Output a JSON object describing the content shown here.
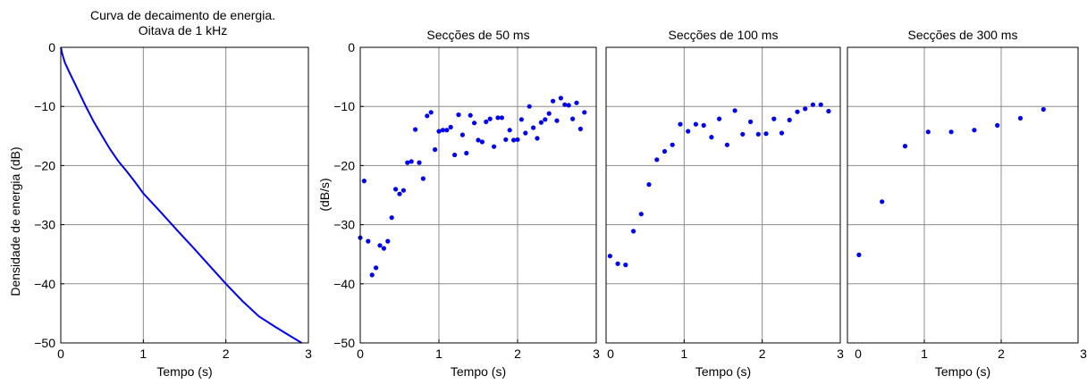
{
  "colors": {
    "series": "#0000ee",
    "grid": "#8c8c8c",
    "axis": "#000000"
  },
  "chart_data": [
    {
      "type": "line",
      "title": [
        "Curva de decaimento de energia.",
        "Oitava de 1 kHz"
      ],
      "xlabel": "Tempo (s)",
      "ylabel": "Densidade de energia (dB)",
      "xlim": [
        0,
        3
      ],
      "ylim": [
        -50,
        0
      ],
      "xticks": [
        0,
        1,
        2,
        3
      ],
      "xticklabels": [
        "0",
        "1",
        "2",
        "3"
      ],
      "yticks": [
        0,
        -10,
        -20,
        -30,
        -40,
        -50
      ],
      "yticklabels": [
        "0",
        "−10",
        "−20",
        "−30",
        "−40",
        "−50"
      ],
      "grid": true,
      "x": [
        0,
        0.02,
        0.05,
        0.1,
        0.2,
        0.3,
        0.4,
        0.5,
        0.6,
        0.7,
        0.8,
        0.9,
        1.0,
        1.2,
        1.4,
        1.6,
        1.8,
        2.0,
        2.2,
        2.4,
        2.6,
        2.8,
        2.92
      ],
      "y": [
        0,
        -1.2,
        -2.6,
        -4.1,
        -7.0,
        -9.9,
        -12.6,
        -15.0,
        -17.3,
        -19.3,
        -21.0,
        -22.8,
        -24.7,
        -27.7,
        -30.8,
        -33.8,
        -36.9,
        -40.0,
        -42.9,
        -45.5,
        -47.3,
        -49.0,
        -50.0
      ]
    },
    {
      "type": "scatter",
      "title": "Secções de 50 ms",
      "xlabel": "Tempo (s)",
      "ylabel": "(dB/s)",
      "xlim": [
        0,
        3
      ],
      "ylim": [
        -50,
        0
      ],
      "xticks": [
        0,
        1,
        2,
        3
      ],
      "xticklabels": [
        "0",
        "1",
        "2",
        "3"
      ],
      "yticks": [
        0,
        -10,
        -20,
        -30,
        -40,
        -50
      ],
      "yticklabels": [
        "0",
        "−10",
        "−20",
        "−30",
        "−40",
        "−50"
      ],
      "grid": true,
      "x": [
        0.0,
        0.05,
        0.1,
        0.15,
        0.2,
        0.25,
        0.3,
        0.35,
        0.4,
        0.45,
        0.5,
        0.55,
        0.6,
        0.65,
        0.7,
        0.75,
        0.8,
        0.85,
        0.9,
        0.95,
        1.0,
        1.05,
        1.1,
        1.15,
        1.2,
        1.25,
        1.3,
        1.35,
        1.4,
        1.45,
        1.5,
        1.55,
        1.6,
        1.65,
        1.7,
        1.75,
        1.8,
        1.85,
        1.9,
        1.95,
        2.0,
        2.05,
        2.1,
        2.15,
        2.2,
        2.25,
        2.3,
        2.35,
        2.4,
        2.45,
        2.5,
        2.55,
        2.6,
        2.65,
        2.7,
        2.75,
        2.8,
        2.85
      ],
      "y": [
        -32.2,
        -22.6,
        -32.8,
        -38.5,
        -37.3,
        -33.5,
        -34.0,
        -32.8,
        -28.8,
        -24.0,
        -24.8,
        -24.2,
        -19.5,
        -19.3,
        -13.9,
        -19.5,
        -22.2,
        -11.6,
        -11.0,
        -17.3,
        -14.2,
        -14.0,
        -14.0,
        -13.5,
        -18.2,
        -11.4,
        -14.8,
        -17.9,
        -11.5,
        -12.8,
        -15.7,
        -16.0,
        -12.6,
        -12.1,
        -16.8,
        -11.9,
        -11.9,
        -15.6,
        -14.0,
        -15.7,
        -15.6,
        -12.2,
        -14.5,
        -10.0,
        -13.6,
        -15.4,
        -12.7,
        -12.2,
        -11.2,
        -9.1,
        -12.4,
        -8.6,
        -9.7,
        -9.8,
        -12.1,
        -9.4,
        -13.8,
        -11.0
      ]
    },
    {
      "type": "scatter",
      "title": "Secções de 100 ms",
      "xlabel": "Tempo (s)",
      "ylabel": "",
      "xlim": [
        0,
        3
      ],
      "ylim": [
        -50,
        0
      ],
      "xticks": [
        0,
        1,
        2,
        3
      ],
      "xticklabels": [
        "0",
        "1",
        "2",
        "3"
      ],
      "grid": true,
      "x": [
        0.05,
        0.15,
        0.25,
        0.35,
        0.45,
        0.55,
        0.65,
        0.75,
        0.85,
        0.95,
        1.05,
        1.15,
        1.25,
        1.35,
        1.45,
        1.55,
        1.65,
        1.75,
        1.85,
        1.95,
        2.05,
        2.15,
        2.25,
        2.35,
        2.45,
        2.55,
        2.65,
        2.75,
        2.85
      ],
      "y": [
        -35.3,
        -36.6,
        -36.8,
        -31.1,
        -28.2,
        -23.2,
        -19.0,
        -17.6,
        -16.5,
        -13.0,
        -14.2,
        -13.0,
        -13.2,
        -15.2,
        -12.1,
        -16.5,
        -10.7,
        -14.7,
        -12.6,
        -14.7,
        -14.6,
        -12.1,
        -14.5,
        -12.3,
        -10.9,
        -10.4,
        -9.7,
        -9.7,
        -10.8
      ]
    },
    {
      "type": "scatter",
      "title": "Secções de 300 ms",
      "xlabel": "Tempo (s)",
      "ylabel": "",
      "xlim": [
        0,
        3
      ],
      "ylim": [
        -50,
        0
      ],
      "xticks": [
        0,
        1,
        2,
        3
      ],
      "xticklabels": [
        "0",
        "1",
        "2",
        "3"
      ],
      "grid": true,
      "x": [
        0.15,
        0.45,
        0.75,
        1.05,
        1.35,
        1.65,
        1.95,
        2.25,
        2.55
      ],
      "y": [
        -35.1,
        -26.1,
        -16.7,
        -14.3,
        -14.3,
        -14.0,
        -13.2,
        -12.0,
        -10.5
      ]
    }
  ]
}
